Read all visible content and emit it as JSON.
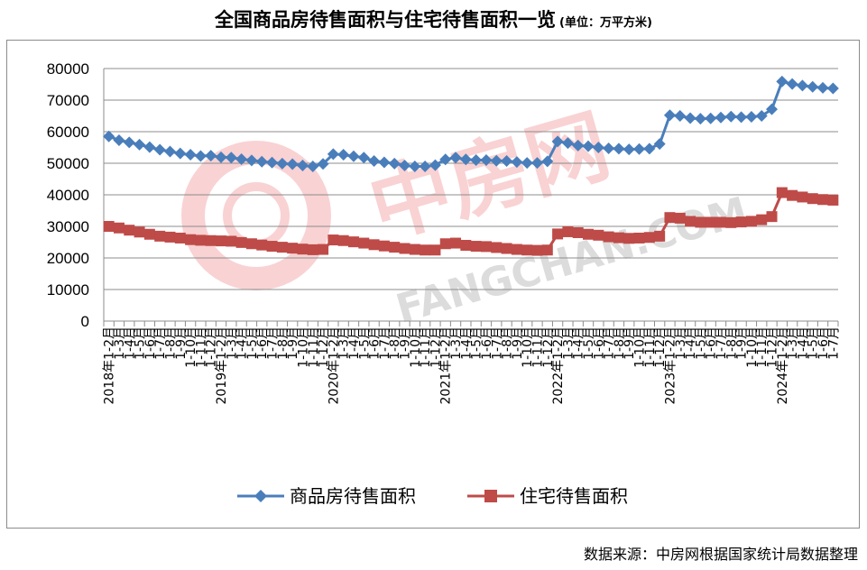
{
  "header": {
    "title": "全国商品房待售面积与住宅待售面积一览",
    "unit": "(单位：万平方米)"
  },
  "footer": {
    "source": "数据来源：中房网根据国家统计局数据整理"
  },
  "watermark": {
    "cn_text": "中房网",
    "en_text": "FANGCHAN.COM",
    "color": "#e8393d"
  },
  "chart_data": {
    "type": "line",
    "title": "全国商品房待售面积与住宅待售面积一览",
    "ylim": [
      0,
      80000
    ],
    "yticks": [
      "0",
      "10000",
      "20000",
      "30000",
      "40000",
      "50000",
      "60000",
      "70000",
      "80000"
    ],
    "year_labels": [
      "2018年",
      "2019年",
      "2020年",
      "2021年",
      "2022年",
      "2023年",
      "2024年"
    ],
    "month_labels": [
      "1-2月",
      "1-3月",
      "1-4月",
      "1-5月",
      "1-6月",
      "1-7月",
      "1-8月",
      "1-9月",
      "1-10月",
      "1-11月",
      "1-12月"
    ],
    "legend_position": "bottom",
    "colors": {
      "series1": "#4a7ebb",
      "series2": "#be4b48"
    },
    "series": [
      {
        "name": "商品房待售面积",
        "values": [
          58500,
          57300,
          56600,
          55900,
          55100,
          54300,
          53700,
          53100,
          52700,
          52300,
          52400,
          51900,
          51800,
          51300,
          50900,
          50500,
          50200,
          49900,
          49700,
          49300,
          49000,
          49800,
          52900,
          52700,
          52200,
          51800,
          50700,
          50300,
          49900,
          49300,
          49000,
          49000,
          49400,
          51200,
          51800,
          51200,
          51000,
          51000,
          50800,
          50700,
          50400,
          50100,
          50100,
          50600,
          56900,
          56400,
          55600,
          55400,
          55000,
          54700,
          54600,
          54400,
          54500,
          54600,
          56100,
          65200,
          65000,
          64300,
          64100,
          64200,
          64500,
          64800,
          64600,
          64700,
          65000,
          67100,
          75900,
          75100,
          74600,
          74200,
          73900,
          73700
        ]
      },
      {
        "name": "住宅待售面积",
        "values": [
          30000,
          29500,
          28800,
          28200,
          27500,
          26900,
          26600,
          26300,
          25800,
          25600,
          25500,
          25400,
          25300,
          24900,
          24500,
          24100,
          23700,
          23400,
          23100,
          22800,
          22600,
          22700,
          25700,
          25500,
          25100,
          24700,
          24200,
          23800,
          23400,
          23000,
          22700,
          22500,
          22500,
          24500,
          24700,
          24000,
          23700,
          23600,
          23300,
          23000,
          22700,
          22500,
          22400,
          22500,
          27600,
          28300,
          28000,
          27500,
          27200,
          26700,
          26400,
          26200,
          26300,
          26500,
          26900,
          32800,
          32600,
          31600,
          31300,
          31300,
          31300,
          31200,
          31400,
          31600,
          32100,
          33100,
          40700,
          39800,
          39300,
          38800,
          38500,
          38300
        ]
      }
    ]
  }
}
